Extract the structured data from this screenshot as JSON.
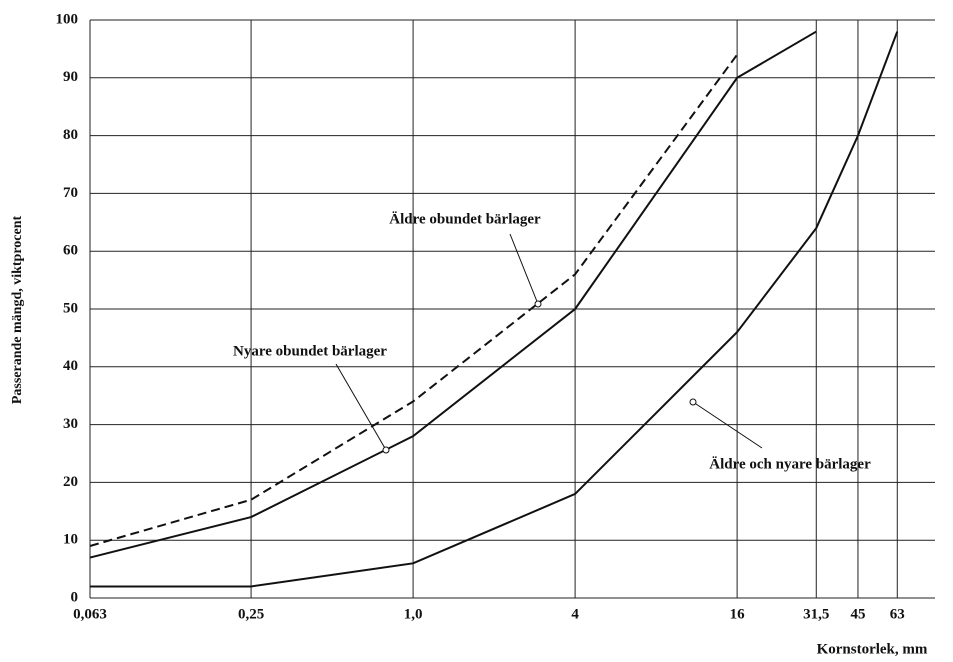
{
  "chart_data": {
    "type": "line",
    "xlabel": "Kornstorlek, mm",
    "ylabel": "Passerande mängd, viktprocent",
    "xscale": "log",
    "grid": true,
    "xlim": [
      0.063,
      87
    ],
    "ylim": [
      0,
      100
    ],
    "xticks": [
      {
        "value": 0.063,
        "label": "0,063"
      },
      {
        "value": 0.25,
        "label": "0,25"
      },
      {
        "value": 1.0,
        "label": "1,0"
      },
      4,
      16,
      {
        "value": 31.5,
        "label": "31,5"
      },
      45,
      63
    ],
    "yticks": [
      0,
      10,
      20,
      30,
      40,
      50,
      60,
      70,
      80,
      90,
      100
    ],
    "series": [
      {
        "name": "Äldre obundet bärlager",
        "color": "#111",
        "line_style": "dashed",
        "x": [
          0.063,
          0.25,
          1.0,
          4,
          16
        ],
        "values": [
          9,
          17,
          34,
          56,
          94
        ]
      },
      {
        "name": "Nyare obundet bärlager",
        "color": "#111",
        "line_style": "solid",
        "x": [
          0.063,
          0.25,
          1.0,
          4,
          16,
          31.5
        ],
        "values": [
          7,
          14,
          28,
          50,
          90,
          98
        ]
      },
      {
        "name": "Äldre och nyare bärlager",
        "color": "#111",
        "line_style": "solid",
        "x": [
          0.063,
          0.25,
          1.0,
          4,
          16,
          31.5,
          45,
          63
        ],
        "values": [
          2,
          2,
          6,
          18,
          46,
          64,
          80,
          98
        ]
      }
    ]
  }
}
